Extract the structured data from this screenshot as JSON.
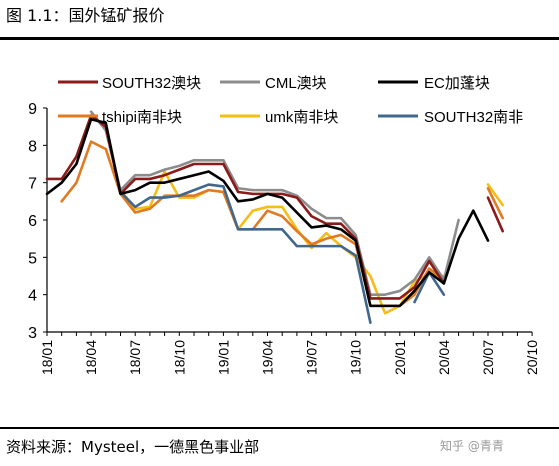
{
  "header": {
    "title": "图 1.1：国外锰矿报价"
  },
  "footer": {
    "source": "资料来源：Mysteel，一德黑色事业部",
    "watermark": "知乎 @青青"
  },
  "chart_data": {
    "type": "line",
    "title": "",
    "xlabel": "",
    "ylabel": "",
    "ylim": [
      3,
      9
    ],
    "yticks": [
      3,
      4,
      5,
      6,
      7,
      8,
      9
    ],
    "grid": false,
    "legend_position": "top",
    "x": [
      "18/01",
      "18/02",
      "18/03",
      "18/04",
      "18/05",
      "18/06",
      "18/07",
      "18/08",
      "18/09",
      "18/10",
      "18/11",
      "18/12",
      "19/01",
      "19/02",
      "19/03",
      "19/04",
      "19/05",
      "19/06",
      "19/07",
      "19/08",
      "19/09",
      "19/10",
      "19/11",
      "19/12",
      "20/01",
      "20/02",
      "20/03",
      "20/04",
      "20/05",
      "20/06",
      "20/07",
      "20/08",
      "20/09",
      "20/10"
    ],
    "xtick_labels": [
      "18/01",
      "18/04",
      "18/07",
      "18/10",
      "19/01",
      "19/04",
      "19/07",
      "19/10",
      "20/01",
      "20/04",
      "20/07",
      "20/10"
    ],
    "series": [
      {
        "name": "SOUTH32澳块",
        "color": "#8b1a1a",
        "values": [
          7.1,
          7.1,
          7.7,
          8.8,
          8.5,
          6.7,
          7.1,
          7.1,
          7.2,
          7.35,
          7.5,
          7.5,
          7.5,
          6.75,
          6.7,
          6.7,
          6.7,
          6.6,
          6.1,
          5.9,
          5.9,
          5.5,
          3.9,
          3.9,
          3.9,
          4.2,
          4.9,
          4.3,
          null,
          null,
          6.6,
          5.7,
          null,
          null
        ]
      },
      {
        "name": "CML澳块",
        "color": "#8c8c8c",
        "values": [
          null,
          null,
          null,
          8.9,
          8.4,
          6.8,
          7.2,
          7.2,
          7.35,
          7.45,
          7.6,
          7.6,
          7.6,
          6.85,
          6.8,
          6.8,
          6.8,
          6.65,
          6.3,
          6.05,
          6.05,
          5.6,
          4.0,
          4.0,
          4.1,
          4.4,
          5.0,
          4.4,
          6.0,
          null,
          null,
          null,
          null,
          null
        ]
      },
      {
        "name": "EC加蓬块",
        "color": "#000000",
        "values": [
          6.7,
          7.0,
          7.5,
          8.7,
          8.6,
          6.7,
          6.8,
          7.0,
          7.0,
          7.1,
          7.2,
          7.3,
          7.05,
          6.5,
          6.55,
          6.7,
          6.6,
          6.2,
          5.8,
          5.85,
          5.75,
          5.45,
          3.7,
          3.7,
          3.7,
          4.1,
          4.6,
          4.3,
          5.5,
          6.25,
          5.45,
          null,
          null,
          null
        ]
      },
      {
        "name": "tshipi南非块",
        "color": "#e07b22",
        "values": [
          null,
          6.5,
          7.0,
          8.1,
          7.9,
          6.7,
          6.2,
          6.3,
          6.65,
          6.65,
          6.65,
          6.8,
          6.75,
          5.75,
          5.75,
          6.25,
          6.1,
          5.7,
          5.35,
          5.5,
          5.6,
          5.35,
          3.7,
          3.7,
          3.7,
          4.0,
          4.7,
          4.4,
          null,
          null,
          6.85,
          6.05,
          null,
          null
        ]
      },
      {
        "name": "umk南非块",
        "color": "#f5bd16",
        "values": [
          null,
          null,
          null,
          null,
          null,
          6.8,
          6.3,
          6.35,
          7.3,
          6.6,
          6.6,
          6.8,
          6.75,
          5.75,
          6.25,
          6.35,
          6.35,
          5.75,
          5.25,
          5.65,
          5.3,
          5.0,
          4.5,
          3.5,
          3.7,
          4.35,
          4.55,
          4.5,
          null,
          null,
          6.95,
          6.4,
          null,
          null
        ]
      },
      {
        "name": "SOUTH32南非",
        "color": "#41678f",
        "values": [
          null,
          null,
          null,
          null,
          null,
          6.75,
          6.35,
          6.6,
          6.6,
          6.65,
          6.8,
          6.95,
          6.9,
          5.75,
          5.75,
          5.75,
          5.75,
          5.3,
          5.3,
          5.3,
          5.3,
          5.05,
          3.25,
          null,
          null,
          3.8,
          4.6,
          4.0,
          null,
          null,
          null,
          null,
          null,
          null
        ]
      }
    ]
  }
}
